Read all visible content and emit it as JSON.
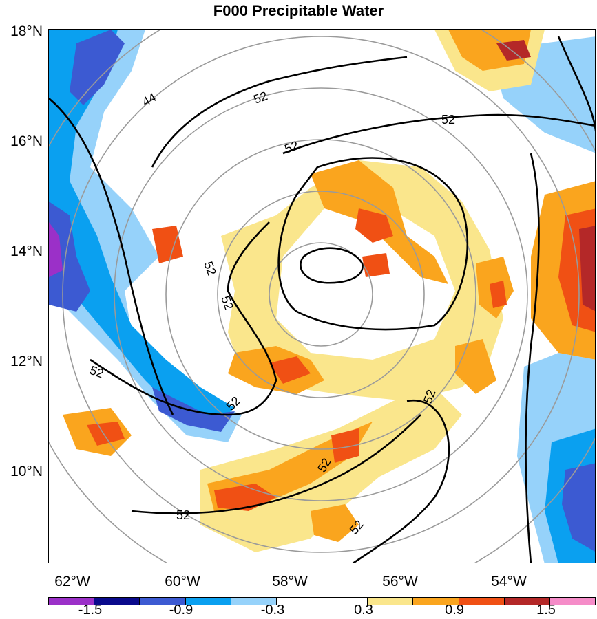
{
  "title": "F000 Precipitable Water",
  "lat_labels": [
    "18°N",
    "16°N",
    "14°N",
    "12°N",
    "10°N"
  ],
  "lon_labels": [
    "62°W",
    "60°W",
    "58°W",
    "56°W",
    "54°W"
  ],
  "contour_labels": [
    "44",
    "52",
    "52",
    "52",
    "52",
    "52",
    "52",
    "52",
    "52",
    "52",
    "52",
    "52"
  ],
  "colorbar": {
    "colors": [
      "#9b30c8",
      "#0a0a8c",
      "#3c5ad2",
      "#0aa0f0",
      "#96d2fa",
      "#ffffff",
      "#ffffff",
      "#fae68c",
      "#faa51e",
      "#f05014",
      "#b42828",
      "#f58cc8"
    ],
    "labels": [
      "-1.5",
      "-0.9",
      "-0.3",
      "0.3",
      "0.9",
      "1.5"
    ]
  },
  "legend_colors": {
    "strong_negative": "#3c5ad2",
    "negative": "#0aa0f0",
    "weak_negative": "#96d2fa",
    "weak_positive": "#fae68c",
    "positive": "#faa51e",
    "strong_positive": "#f05014",
    "very_strong_positive": "#b42828"
  }
}
